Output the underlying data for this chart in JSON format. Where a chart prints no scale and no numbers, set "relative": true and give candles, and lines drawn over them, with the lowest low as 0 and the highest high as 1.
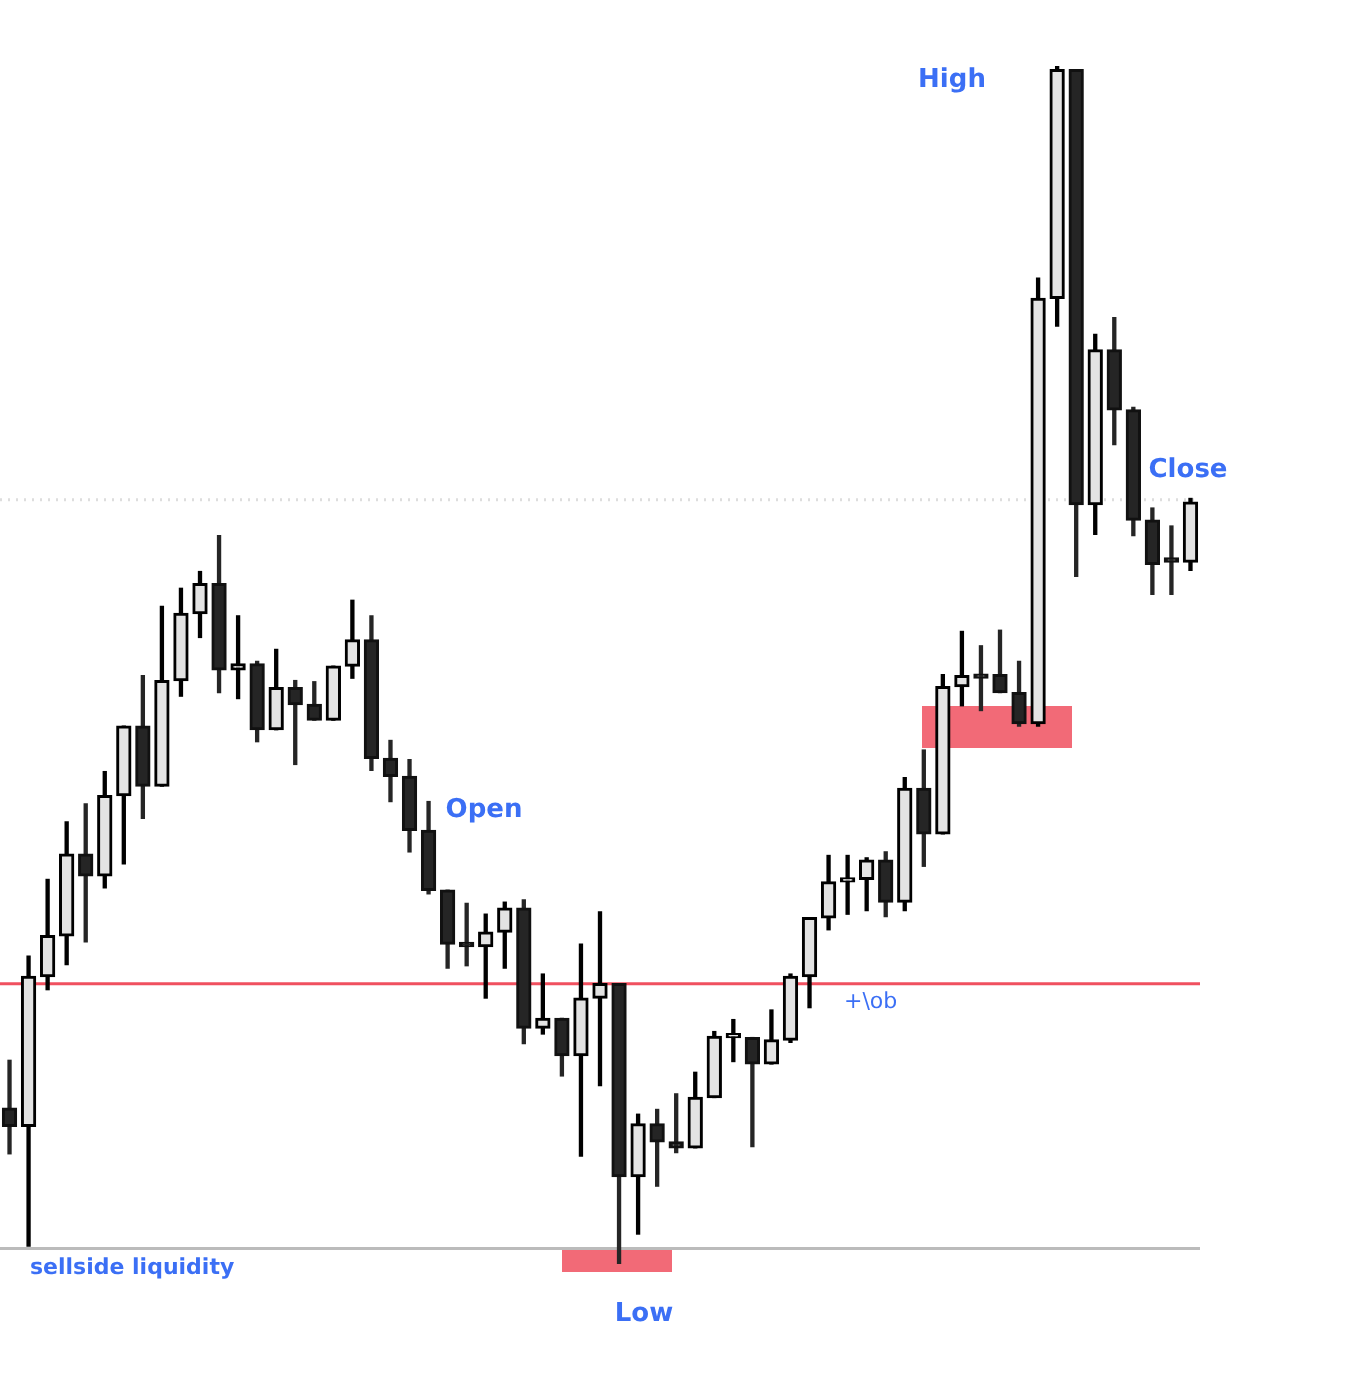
{
  "chart_data": {
    "type": "candlestick",
    "relative": true,
    "tick_labels": false,
    "categories": [
      null,
      null,
      null,
      null,
      null,
      null,
      null,
      null,
      null,
      null,
      null,
      null,
      null,
      null,
      null,
      null,
      null,
      null,
      null,
      null,
      null,
      null,
      null,
      null,
      null,
      null,
      null,
      null,
      null,
      null,
      null,
      null,
      null,
      null,
      null,
      null,
      null,
      null,
      null,
      null,
      null,
      null,
      null,
      null,
      null,
      null,
      null,
      null,
      null,
      null,
      null,
      null,
      null,
      null,
      null,
      null,
      null,
      null,
      null,
      null,
      null,
      null,
      null
    ],
    "ohlc": [
      [
        0.13,
        0.17,
        0.092,
        0.115
      ],
      [
        0.115,
        0.257,
        0.015,
        0.24
      ],
      [
        0.24,
        0.321,
        0.229,
        0.274
      ],
      [
        0.274,
        0.369,
        0.25,
        0.342
      ],
      [
        0.342,
        0.384,
        0.269,
        0.324
      ],
      [
        0.324,
        0.411,
        0.314,
        0.391
      ],
      [
        0.391,
        0.449,
        0.334,
        0.449
      ],
      [
        0.449,
        0.491,
        0.372,
        0.399
      ],
      [
        0.399,
        0.549,
        0.399,
        0.487
      ],
      [
        0.487,
        0.564,
        0.474,
        0.543
      ],
      [
        0.543,
        0.578,
        0.523,
        0.568
      ],
      [
        0.568,
        0.608,
        0.477,
        0.496
      ],
      [
        0.496,
        0.541,
        0.472,
        0.501
      ],
      [
        0.501,
        0.503,
        0.436,
        0.446
      ],
      [
        0.446,
        0.513,
        0.446,
        0.481
      ],
      [
        0.481,
        0.487,
        0.417,
        0.467
      ],
      [
        0.467,
        0.486,
        0.454,
        0.454
      ],
      [
        0.454,
        0.499,
        0.454,
        0.499
      ],
      [
        0.499,
        0.554,
        0.489,
        0.521
      ],
      [
        0.521,
        0.541,
        0.412,
        0.422
      ],
      [
        0.422,
        0.437,
        0.386,
        0.407
      ],
      [
        0.407,
        0.421,
        0.344,
        0.362
      ],
      [
        0.362,
        0.386,
        0.309,
        0.312
      ],
      [
        0.312,
        0.312,
        0.247,
        0.267
      ],
      [
        0.267,
        0.301,
        0.249,
        0.265
      ],
      [
        0.265,
        0.292,
        0.222,
        0.277
      ],
      [
        0.277,
        0.302,
        0.247,
        0.297
      ],
      [
        0.297,
        0.304,
        0.184,
        0.197
      ],
      [
        0.197,
        0.242,
        0.192,
        0.205
      ],
      [
        0.205,
        0.205,
        0.157,
        0.174
      ],
      [
        0.174,
        0.267,
        0.09,
        0.222
      ],
      [
        0.222,
        0.294,
        0.149,
        0.234
      ],
      [
        0.234,
        0.234,
        0,
        0.073
      ],
      [
        0.073,
        0.125,
        0.025,
        0.117
      ],
      [
        0.117,
        0.129,
        0.065,
        0.102
      ],
      [
        0.102,
        0.142,
        0.093,
        0.097
      ],
      [
        0.097,
        0.16,
        0.097,
        0.139
      ],
      [
        0.139,
        0.194,
        0.139,
        0.19
      ],
      [
        0.189,
        0.204,
        0.169,
        0.19
      ],
      [
        0.189,
        0.189,
        0.098,
        0.167
      ],
      [
        0.167,
        0.212,
        0.167,
        0.187
      ],
      [
        0.187,
        0.242,
        0.185,
        0.24
      ],
      [
        0.24,
        0.289,
        0.214,
        0.289
      ],
      [
        0.289,
        0.341,
        0.279,
        0.319
      ],
      [
        0.319,
        0.341,
        0.292,
        0.321
      ],
      [
        0.321,
        0.339,
        0.295,
        0.337
      ],
      [
        0.337,
        0.344,
        0.29,
        0.302
      ],
      [
        0.302,
        0.406,
        0.295,
        0.397
      ],
      [
        0.397,
        0.429,
        0.332,
        0.359
      ],
      [
        0.359,
        0.492,
        0.359,
        0.482
      ],
      [
        0.482,
        0.528,
        0.466,
        0.491
      ],
      [
        0.491,
        0.516,
        0.462,
        0.489
      ],
      [
        0.492,
        0.529,
        0.477,
        0.477
      ],
      [
        0.477,
        0.503,
        0.449,
        0.451
      ],
      [
        0.451,
        0.823,
        0.449,
        0.806
      ],
      [
        0.806,
        1,
        0.783,
        0.997
      ],
      [
        0.997,
        0.997,
        0.574,
        0.634
      ],
      [
        0.634,
        0.776,
        0.609,
        0.763
      ],
      [
        0.763,
        0.79,
        0.684,
        0.713
      ],
      [
        0.713,
        0.715,
        0.608,
        0.621
      ],
      [
        0.621,
        0.631,
        0.559,
        0.584
      ],
      [
        0.586,
        0.616,
        0.559,
        0.586
      ],
      [
        0.586,
        0.639,
        0.579,
        0.636
      ]
    ],
    "annotations": [
      "High",
      "Open",
      "Low",
      "Close"
    ],
    "ref_lines": [
      {
        "axis": "y",
        "value": 0.013,
        "label": "sellside liquidity",
        "color": "#bbbbbb"
      },
      {
        "axis": "y",
        "value": 0.234,
        "label": "+\\ob",
        "color": "#f0505f"
      },
      {
        "axis": "y",
        "value": 0.638,
        "color": "#dddddd",
        "line_style": "dotted"
      }
    ]
  }
}
